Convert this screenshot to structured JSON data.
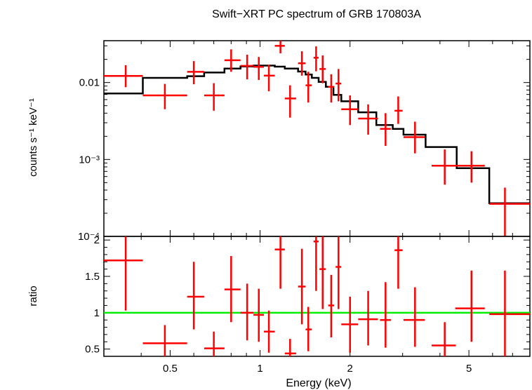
{
  "chart_data": {
    "type": "scatter",
    "title": "Swift−XRT PC spectrum of GRB 170803A",
    "xlabel": "Energy (keV)",
    "x_scale": "log",
    "xlim": [
      0.3,
      8.0
    ],
    "x_ticks": [
      "0.5",
      "1",
      "2",
      "5"
    ],
    "colors": {
      "data": "#ff0000",
      "model": "#000000",
      "unity_line": "#00ee00"
    },
    "spectrum_panel": {
      "ylabel": "counts s⁻¹ keV⁻¹",
      "y_scale": "log",
      "ylim": [
        0.0001,
        0.035
      ],
      "y_ticks": [
        "0.01",
        "10⁻³",
        "10⁻⁴"
      ],
      "data": [
        {
          "x": 0.355,
          "xlo": 0.3,
          "xhi": 0.405,
          "y": 0.0122,
          "ylo": 0.0087,
          "yhi": 0.0168
        },
        {
          "x": 0.48,
          "xlo": 0.405,
          "xhi": 0.57,
          "y": 0.0068,
          "ylo": 0.0045,
          "yhi": 0.0096
        },
        {
          "x": 0.6,
          "xlo": 0.57,
          "xhi": 0.65,
          "y": 0.0138,
          "ylo": 0.0095,
          "yhi": 0.019
        },
        {
          "x": 0.7,
          "xlo": 0.65,
          "xhi": 0.76,
          "y": 0.0068,
          "ylo": 0.0043,
          "yhi": 0.0098
        },
        {
          "x": 0.8,
          "xlo": 0.76,
          "xhi": 0.86,
          "y": 0.0195,
          "ylo": 0.0138,
          "yhi": 0.027
        },
        {
          "x": 0.905,
          "xlo": 0.86,
          "xhi": 0.95,
          "y": 0.0165,
          "ylo": 0.011,
          "yhi": 0.023
        },
        {
          "x": 0.99,
          "xlo": 0.95,
          "xhi": 1.03,
          "y": 0.016,
          "ylo": 0.0108,
          "yhi": 0.0215
        },
        {
          "x": 1.07,
          "xlo": 1.03,
          "xhi": 1.12,
          "y": 0.0123,
          "ylo": 0.0077,
          "yhi": 0.017
        },
        {
          "x": 1.17,
          "xlo": 1.12,
          "xhi": 1.21,
          "y": 0.03,
          "ylo": 0.024,
          "yhi": 0.0355
        },
        {
          "x": 1.26,
          "xlo": 1.21,
          "xhi": 1.32,
          "y": 0.0062,
          "ylo": 0.0035,
          "yhi": 0.0092
        },
        {
          "x": 1.38,
          "xlo": 1.34,
          "xhi": 1.42,
          "y": 0.0178,
          "ylo": 0.0123,
          "yhi": 0.0255
        },
        {
          "x": 1.45,
          "xlo": 1.42,
          "xhi": 1.49,
          "y": 0.0092,
          "ylo": 0.0055,
          "yhi": 0.0138
        },
        {
          "x": 1.54,
          "xlo": 1.51,
          "xhi": 1.57,
          "y": 0.021,
          "ylo": 0.014,
          "yhi": 0.0295
        },
        {
          "x": 1.62,
          "xlo": 1.58,
          "xhi": 1.66,
          "y": 0.015,
          "ylo": 0.0098,
          "yhi": 0.0225
        },
        {
          "x": 1.73,
          "xlo": 1.69,
          "xhi": 1.77,
          "y": 0.0088,
          "ylo": 0.0055,
          "yhi": 0.0128
        },
        {
          "x": 1.83,
          "xlo": 1.79,
          "xhi": 1.87,
          "y": 0.0097,
          "ylo": 0.0057,
          "yhi": 0.015
        },
        {
          "x": 2.0,
          "xlo": 1.87,
          "xhi": 2.13,
          "y": 0.0045,
          "ylo": 0.0028,
          "yhi": 0.0068
        },
        {
          "x": 2.3,
          "xlo": 2.13,
          "xhi": 2.48,
          "y": 0.0034,
          "ylo": 0.0021,
          "yhi": 0.0052
        },
        {
          "x": 2.63,
          "xlo": 2.52,
          "xhi": 2.74,
          "y": 0.0025,
          "ylo": 0.0015,
          "yhi": 0.004
        },
        {
          "x": 2.9,
          "xlo": 2.82,
          "xhi": 3.0,
          "y": 0.0043,
          "ylo": 0.0029,
          "yhi": 0.0066
        },
        {
          "x": 3.3,
          "xlo": 3.02,
          "xhi": 3.56,
          "y": 0.00195,
          "ylo": 0.0012,
          "yhi": 0.0031
        },
        {
          "x": 4.15,
          "xlo": 3.75,
          "xhi": 4.52,
          "y": 0.00083,
          "ylo": 0.00047,
          "yhi": 0.00135
        },
        {
          "x": 5.1,
          "xlo": 4.5,
          "xhi": 5.65,
          "y": 0.00083,
          "ylo": 0.0005,
          "yhi": 0.00128
        },
        {
          "x": 6.6,
          "xlo": 5.85,
          "xhi": 8.0,
          "y": 0.000265,
          "ylo": 7e-05,
          "yhi": 0.00043
        }
      ],
      "model_steps": [
        {
          "xlo": 0.3,
          "xhi": 0.405,
          "y": 0.0072
        },
        {
          "xlo": 0.405,
          "xhi": 0.57,
          "y": 0.0115
        },
        {
          "xlo": 0.57,
          "xhi": 0.65,
          "y": 0.0121
        },
        {
          "xlo": 0.65,
          "xhi": 0.76,
          "y": 0.0135
        },
        {
          "xlo": 0.76,
          "xhi": 0.86,
          "y": 0.0152
        },
        {
          "xlo": 0.86,
          "xhi": 0.95,
          "y": 0.0162
        },
        {
          "xlo": 0.95,
          "xhi": 1.03,
          "y": 0.0166
        },
        {
          "xlo": 1.03,
          "xhi": 1.12,
          "y": 0.0166
        },
        {
          "xlo": 1.12,
          "xhi": 1.21,
          "y": 0.0161
        },
        {
          "xlo": 1.21,
          "xhi": 1.34,
          "y": 0.0152
        },
        {
          "xlo": 1.34,
          "xhi": 1.42,
          "y": 0.0139
        },
        {
          "xlo": 1.42,
          "xhi": 1.49,
          "y": 0.0127
        },
        {
          "xlo": 1.49,
          "xhi": 1.57,
          "y": 0.0115
        },
        {
          "xlo": 1.57,
          "xhi": 1.66,
          "y": 0.0102
        },
        {
          "xlo": 1.66,
          "xhi": 1.76,
          "y": 0.0088
        },
        {
          "xlo": 1.76,
          "xhi": 1.87,
          "y": 0.0069
        },
        {
          "xlo": 1.87,
          "xhi": 2.13,
          "y": 0.0057
        },
        {
          "xlo": 2.13,
          "xhi": 2.45,
          "y": 0.0041
        },
        {
          "xlo": 2.45,
          "xhi": 2.78,
          "y": 0.0028
        },
        {
          "xlo": 2.78,
          "xhi": 3.02,
          "y": 0.0025
        },
        {
          "xlo": 3.02,
          "xhi": 3.58,
          "y": 0.0021
        },
        {
          "xlo": 3.58,
          "xhi": 4.55,
          "y": 0.00145
        },
        {
          "xlo": 4.55,
          "xhi": 5.85,
          "y": 0.00077
        },
        {
          "xlo": 5.85,
          "xhi": 8.0,
          "y": 0.00027
        }
      ]
    },
    "ratio_panel": {
      "ylabel": "ratio",
      "y_scale": "linear",
      "ylim": [
        0.4,
        2.05
      ],
      "y_ticks": [
        0.5,
        1,
        1.5,
        2
      ],
      "unity_line": 1,
      "data": [
        {
          "x": 0.355,
          "xlo": 0.3,
          "xhi": 0.405,
          "y": 1.72,
          "ylo": 1.03,
          "yhi": 2.05
        },
        {
          "x": 0.48,
          "xlo": 0.405,
          "xhi": 0.57,
          "y": 0.58,
          "ylo": 0.39,
          "yhi": 0.83
        },
        {
          "x": 0.6,
          "xlo": 0.57,
          "xhi": 0.65,
          "y": 1.22,
          "ylo": 0.77,
          "yhi": 1.7
        },
        {
          "x": 0.7,
          "xlo": 0.65,
          "xhi": 0.76,
          "y": 0.51,
          "ylo": 0.34,
          "yhi": 0.74
        },
        {
          "x": 0.8,
          "xlo": 0.76,
          "xhi": 0.86,
          "y": 1.32,
          "ylo": 0.87,
          "yhi": 1.78
        },
        {
          "x": 0.905,
          "xlo": 0.86,
          "xhi": 0.95,
          "y": 1.0,
          "ylo": 0.62,
          "yhi": 1.4
        },
        {
          "x": 0.99,
          "xlo": 0.95,
          "xhi": 1.03,
          "y": 0.97,
          "ylo": 0.6,
          "yhi": 1.33
        },
        {
          "x": 1.07,
          "xlo": 1.03,
          "xhi": 1.12,
          "y": 0.74,
          "ylo": 0.45,
          "yhi": 1.03
        },
        {
          "x": 1.17,
          "xlo": 1.12,
          "xhi": 1.21,
          "y": 1.87,
          "ylo": 1.33,
          "yhi": 2.05
        },
        {
          "x": 1.26,
          "xlo": 1.21,
          "xhi": 1.32,
          "y": 0.44,
          "ylo": 0.4,
          "yhi": 0.64
        },
        {
          "x": 1.38,
          "xlo": 1.34,
          "xhi": 1.42,
          "y": 1.36,
          "ylo": 0.84,
          "yhi": 1.88
        },
        {
          "x": 1.45,
          "xlo": 1.42,
          "xhi": 1.49,
          "y": 0.77,
          "ylo": 0.47,
          "yhi": 1.08
        },
        {
          "x": 1.54,
          "xlo": 1.51,
          "xhi": 1.57,
          "y": 1.98,
          "ylo": 1.3,
          "yhi": 2.05
        },
        {
          "x": 1.62,
          "xlo": 1.58,
          "xhi": 1.66,
          "y": 1.6,
          "ylo": 1.05,
          "yhi": 2.05
        },
        {
          "x": 1.73,
          "xlo": 1.69,
          "xhi": 1.77,
          "y": 1.1,
          "ylo": 0.66,
          "yhi": 1.52
        },
        {
          "x": 1.83,
          "xlo": 1.79,
          "xhi": 1.87,
          "y": 1.63,
          "ylo": 1.05,
          "yhi": 2.05
        },
        {
          "x": 2.0,
          "xlo": 1.87,
          "xhi": 2.13,
          "y": 0.84,
          "ylo": 0.45,
          "yhi": 1.22
        },
        {
          "x": 2.3,
          "xlo": 2.13,
          "xhi": 2.48,
          "y": 0.91,
          "ylo": 0.55,
          "yhi": 1.3
        },
        {
          "x": 2.63,
          "xlo": 2.52,
          "xhi": 2.74,
          "y": 0.9,
          "ylo": 0.52,
          "yhi": 1.42
        },
        {
          "x": 2.9,
          "xlo": 2.82,
          "xhi": 3.0,
          "y": 1.86,
          "ylo": 1.33,
          "yhi": 2.05
        },
        {
          "x": 3.3,
          "xlo": 3.02,
          "xhi": 3.56,
          "y": 0.9,
          "ylo": 0.53,
          "yhi": 1.35
        },
        {
          "x": 4.15,
          "xlo": 3.75,
          "xhi": 4.52,
          "y": 0.55,
          "ylo": 0.4,
          "yhi": 0.87
        },
        {
          "x": 5.1,
          "xlo": 4.5,
          "xhi": 5.65,
          "y": 1.06,
          "ylo": 0.6,
          "yhi": 1.58
        },
        {
          "x": 6.6,
          "xlo": 5.85,
          "xhi": 8.0,
          "y": 0.98,
          "ylo": 0.4,
          "yhi": 1.58
        }
      ]
    }
  }
}
